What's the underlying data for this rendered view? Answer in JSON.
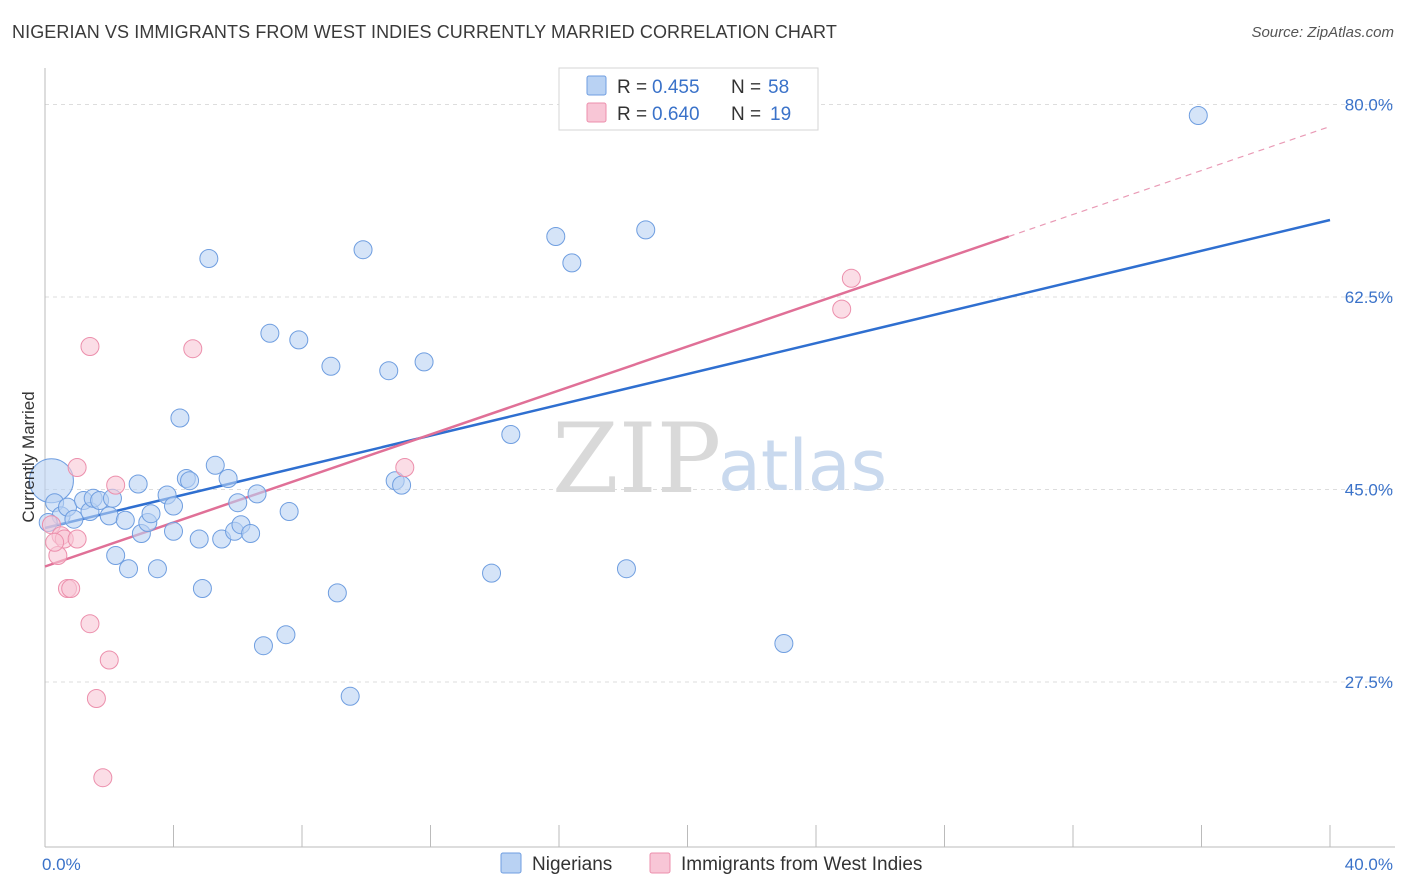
{
  "header": {
    "title": "NIGERIAN VS IMMIGRANTS FROM WEST INDIES CURRENTLY MARRIED CORRELATION CHART",
    "source": "Source: ZipAtlas.com"
  },
  "watermark": {
    "zip": "ZIP",
    "atlas": "atlas"
  },
  "colors": {
    "blue_fill": "#b9d2f3",
    "blue_stroke": "#6f9ee0",
    "blue_line": "#2f6fd0",
    "pink_fill": "#f8c6d6",
    "pink_stroke": "#ec8fac",
    "pink_line": "#e07097",
    "grid": "#dddddd",
    "axis_label": "#3a72c9"
  },
  "legend": {
    "rows": [
      {
        "r_label": "R =",
        "r_value": "0.455",
        "n_label": "N =",
        "n_value": "58"
      },
      {
        "r_label": "R =",
        "r_value": "0.640",
        "n_label": "N =",
        "n_value": "19"
      }
    ]
  },
  "chart_data": {
    "type": "scatter",
    "title": "NIGERIAN VS IMMIGRANTS FROM WEST INDIES CURRENTLY MARRIED CORRELATION CHART",
    "xlabel": "",
    "ylabel": "Currently Married",
    "xlim": [
      0,
      40
    ],
    "ylim": [
      12.5,
      82.5
    ],
    "x_tick_labels": [
      {
        "value": 0,
        "label": "0.0%"
      },
      {
        "value": 40,
        "label": "40.0%"
      }
    ],
    "x_minor_ticks": [
      0,
      4,
      8,
      12,
      16,
      20,
      24,
      28,
      32,
      36,
      40
    ],
    "y_tick_labels": [
      {
        "value": 27.5,
        "label": "27.5%"
      },
      {
        "value": 45.0,
        "label": "45.0%"
      },
      {
        "value": 62.5,
        "label": "62.5%"
      },
      {
        "value": 80.0,
        "label": "80.0%"
      }
    ],
    "grid": true,
    "legend_position": "top-center",
    "series": [
      {
        "name": "Nigerians",
        "color": "#b9d2f3",
        "trend": {
          "x0": 0,
          "y0": 41.5,
          "x1": 40,
          "y1": 69.5,
          "dash_to": null
        },
        "points": [
          [
            0.2,
            45.8,
            "big"
          ],
          [
            0.3,
            43.8
          ],
          [
            0.5,
            42.6
          ],
          [
            0.7,
            43.4
          ],
          [
            0.9,
            42.3
          ],
          [
            1.2,
            44.0
          ],
          [
            1.4,
            43.0
          ],
          [
            1.5,
            44.2
          ],
          [
            1.7,
            44.0
          ],
          [
            2.0,
            42.6
          ],
          [
            2.1,
            44.2
          ],
          [
            2.5,
            42.2
          ],
          [
            2.2,
            39.0
          ],
          [
            2.6,
            37.8
          ],
          [
            2.9,
            45.5
          ],
          [
            3.0,
            41.0
          ],
          [
            3.2,
            42.0
          ],
          [
            3.3,
            42.8
          ],
          [
            3.5,
            37.8
          ],
          [
            3.8,
            44.5
          ],
          [
            4.0,
            43.5
          ],
          [
            4.0,
            41.2
          ],
          [
            4.2,
            51.5
          ],
          [
            4.4,
            46.0
          ],
          [
            4.5,
            45.8
          ],
          [
            4.8,
            40.5
          ],
          [
            4.9,
            36.0
          ],
          [
            5.1,
            66.0
          ],
          [
            5.3,
            47.2
          ],
          [
            5.5,
            40.5
          ],
          [
            5.7,
            46.0
          ],
          [
            5.9,
            41.2
          ],
          [
            6.0,
            43.8
          ],
          [
            6.1,
            41.8
          ],
          [
            6.4,
            41.0
          ],
          [
            6.6,
            44.6
          ],
          [
            6.8,
            30.8
          ],
          [
            7.0,
            59.2
          ],
          [
            7.5,
            31.8
          ],
          [
            7.6,
            43.0
          ],
          [
            7.9,
            58.6
          ],
          [
            8.9,
            56.2
          ],
          [
            9.1,
            35.6
          ],
          [
            9.5,
            26.2
          ],
          [
            9.9,
            66.8
          ],
          [
            10.7,
            55.8
          ],
          [
            10.9,
            45.8
          ],
          [
            11.1,
            45.4
          ],
          [
            11.8,
            56.6
          ],
          [
            13.9,
            37.4
          ],
          [
            14.5,
            50.0
          ],
          [
            15.9,
            68.0
          ],
          [
            16.4,
            65.6
          ],
          [
            18.1,
            37.8
          ],
          [
            18.7,
            68.6
          ],
          [
            23.0,
            31.0
          ],
          [
            35.9,
            79.0
          ],
          [
            0.1,
            42.0
          ]
        ]
      },
      {
        "name": "Immigrants from West Indies",
        "color": "#f8c6d6",
        "trend": {
          "x0": 0,
          "y0": 38.0,
          "x1": 30,
          "y1": 68.0,
          "dash_to": {
            "x": 40,
            "y": 78.0
          }
        },
        "points": [
          [
            0.2,
            41.8
          ],
          [
            0.4,
            39.0
          ],
          [
            0.5,
            40.8
          ],
          [
            0.6,
            40.5
          ],
          [
            0.7,
            36.0
          ],
          [
            0.8,
            36.0
          ],
          [
            1.0,
            40.5
          ],
          [
            1.0,
            47.0
          ],
          [
            1.4,
            32.8
          ],
          [
            1.4,
            58.0
          ],
          [
            1.6,
            26.0
          ],
          [
            1.8,
            18.8
          ],
          [
            2.0,
            29.5
          ],
          [
            2.2,
            45.4
          ],
          [
            4.6,
            57.8
          ],
          [
            11.2,
            47.0
          ],
          [
            24.8,
            61.4
          ],
          [
            25.1,
            64.2
          ],
          [
            0.3,
            40.2
          ]
        ]
      }
    ]
  }
}
